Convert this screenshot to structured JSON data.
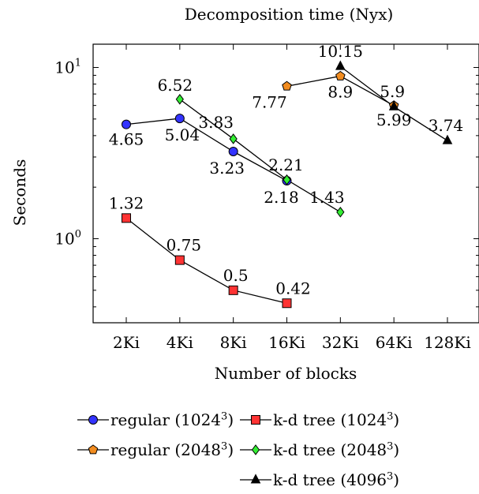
{
  "chart_data": {
    "type": "line",
    "title": "Decomposition time (Nyx)",
    "xlabel": "Number of blocks",
    "ylabel": "Seconds",
    "y_scale": "log",
    "ylim": [
      0.3,
      20
    ],
    "y_ticks": [
      {
        "value": 1,
        "base": "10",
        "exp": "0"
      },
      {
        "value": 10,
        "base": "10",
        "exp": "1"
      }
    ],
    "categories": [
      "2Ki",
      "4Ki",
      "8Ki",
      "16Ki",
      "32Ki",
      "64Ki",
      "128Ki"
    ],
    "grid": false,
    "legend_position": "bottom",
    "series": [
      {
        "name": "regular (1024",
        "sup": "3",
        "close": ")",
        "marker": "circle",
        "color": "#3333ff",
        "x": [
          "2Ki",
          "4Ki",
          "8Ki",
          "16Ki"
        ],
        "values": [
          4.65,
          5.04,
          3.23,
          2.18
        ],
        "labels": [
          "4.65",
          "5.04",
          "3.23",
          "2.18"
        ]
      },
      {
        "name": "k-d tree (1024",
        "sup": "3",
        "close": ")",
        "marker": "square",
        "color": "#ff3333",
        "x": [
          "2Ki",
          "4Ki",
          "8Ki",
          "16Ki"
        ],
        "values": [
          1.32,
          0.75,
          0.5,
          0.42
        ],
        "labels": [
          "1.32",
          "0.75",
          "0.5",
          "0.42"
        ]
      },
      {
        "name": "regular (2048",
        "sup": "3",
        "close": ")",
        "marker": "pentagon",
        "color": "#f28c1f",
        "x": [
          "16Ki",
          "32Ki",
          "64Ki"
        ],
        "values": [
          7.77,
          8.9,
          5.99
        ],
        "labels": [
          "7.77",
          "8.9",
          "5.99"
        ]
      },
      {
        "name": "k-d tree (2048",
        "sup": "3",
        "close": ")",
        "marker": "diamond",
        "color": "#33ee33",
        "x": [
          "4Ki",
          "8Ki",
          "16Ki",
          "32Ki"
        ],
        "values": [
          6.52,
          3.83,
          2.21,
          1.43
        ],
        "labels": [
          "6.52",
          "3.83",
          "2.21",
          "1.43"
        ]
      },
      {
        "name": "k-d tree (4096",
        "sup": "3",
        "close": ")",
        "marker": "triangle",
        "color": "#000000",
        "x": [
          "32Ki",
          "64Ki",
          "128Ki"
        ],
        "values": [
          10.15,
          5.9,
          3.74
        ],
        "labels": [
          "10.15",
          "5.9",
          "3.74"
        ]
      }
    ]
  }
}
